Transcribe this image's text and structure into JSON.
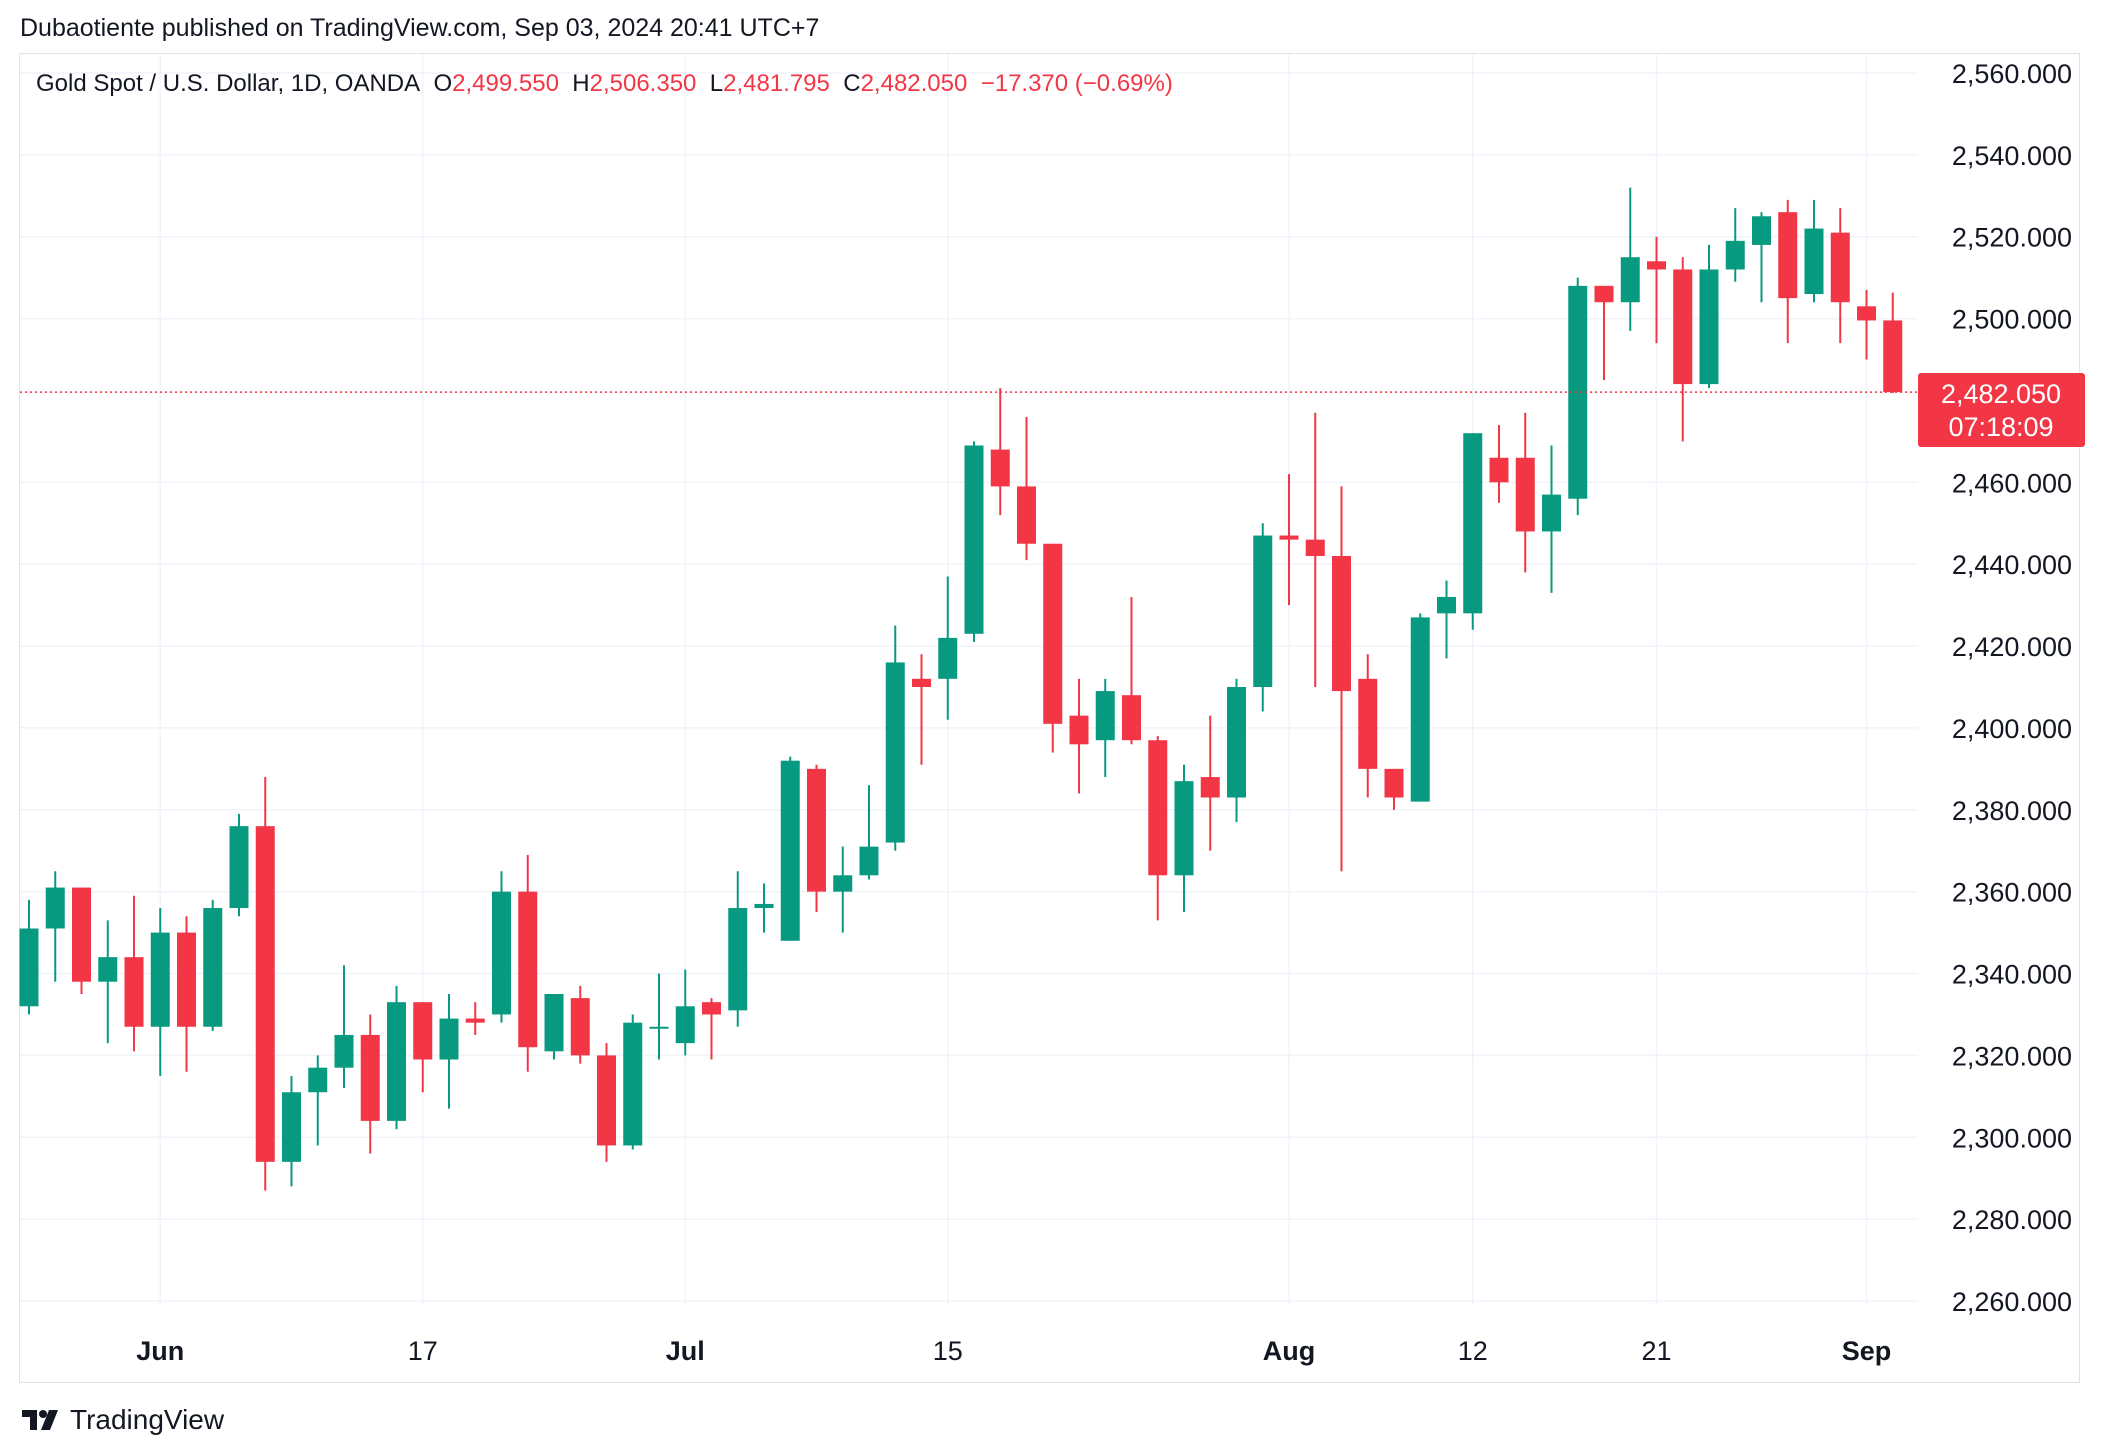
{
  "header": {
    "publish_line": "Dubaotiente published on TradingView.com, Sep 03, 2024 20:41 UTC+7"
  },
  "legend": {
    "symbol": "Gold Spot / U.S. Dollar, 1D, OANDA",
    "o_label": "O",
    "o_value": "2,499.550",
    "h_label": "H",
    "h_value": "2,506.350",
    "l_label": "L",
    "l_value": "2,481.795",
    "c_label": "C",
    "c_value": "2,482.050",
    "change": "−17.370 (−0.69%)"
  },
  "price_label": {
    "price": "2,482.050",
    "countdown": "07:18:09"
  },
  "footer": {
    "brand": "TradingView"
  },
  "colors": {
    "up": "#089981",
    "down": "#f23645",
    "grid": "#f0f3fa",
    "text": "#131722"
  },
  "chart_data": {
    "type": "candlestick",
    "y_ticks": [
      {
        "value": 2560,
        "label": "2,560.000"
      },
      {
        "value": 2540,
        "label": "2,540.000"
      },
      {
        "value": 2520,
        "label": "2,520.000"
      },
      {
        "value": 2500,
        "label": "2,500.000"
      },
      {
        "value": 2460,
        "label": "2,460.000"
      },
      {
        "value": 2440,
        "label": "2,440.000"
      },
      {
        "value": 2420,
        "label": "2,420.000"
      },
      {
        "value": 2400,
        "label": "2,400.000"
      },
      {
        "value": 2380,
        "label": "2,380.000"
      },
      {
        "value": 2360,
        "label": "2,360.000"
      },
      {
        "value": 2340,
        "label": "2,340.000"
      },
      {
        "value": 2320,
        "label": "2,320.000"
      },
      {
        "value": 2300,
        "label": "2,300.000"
      },
      {
        "value": 2280,
        "label": "2,280.000"
      },
      {
        "value": 2260,
        "label": "2,260.000"
      }
    ],
    "ylim": [
      2252,
      2570
    ],
    "x_ticks": [
      {
        "index": 5,
        "label": "Jun",
        "bold": true
      },
      {
        "index": 15,
        "label": "17",
        "bold": false
      },
      {
        "index": 25,
        "label": "Jul",
        "bold": true
      },
      {
        "index": 35,
        "label": "15",
        "bold": false
      },
      {
        "index": 48,
        "label": "Aug",
        "bold": true
      },
      {
        "index": 55,
        "label": "12",
        "bold": false
      },
      {
        "index": 62,
        "label": "21",
        "bold": false
      },
      {
        "index": 70,
        "label": "Sep",
        "bold": true
      }
    ],
    "last_price": 2482.05,
    "candles": [
      {
        "o": 2332,
        "h": 2358,
        "l": 2330,
        "c": 2351
      },
      {
        "o": 2351,
        "h": 2365,
        "l": 2338,
        "c": 2361
      },
      {
        "o": 2361,
        "h": 2361,
        "l": 2335,
        "c": 2338
      },
      {
        "o": 2338,
        "h": 2353,
        "l": 2323,
        "c": 2344
      },
      {
        "o": 2344,
        "h": 2359,
        "l": 2321,
        "c": 2327
      },
      {
        "o": 2327,
        "h": 2356,
        "l": 2315,
        "c": 2350
      },
      {
        "o": 2350,
        "h": 2354,
        "l": 2316,
        "c": 2327
      },
      {
        "o": 2327,
        "h": 2358,
        "l": 2326,
        "c": 2356
      },
      {
        "o": 2356,
        "h": 2379,
        "l": 2354,
        "c": 2376
      },
      {
        "o": 2376,
        "h": 2388,
        "l": 2287,
        "c": 2294
      },
      {
        "o": 2294,
        "h": 2315,
        "l": 2288,
        "c": 2311
      },
      {
        "o": 2311,
        "h": 2320,
        "l": 2298,
        "c": 2317
      },
      {
        "o": 2317,
        "h": 2342,
        "l": 2312,
        "c": 2325
      },
      {
        "o": 2325,
        "h": 2330,
        "l": 2296,
        "c": 2304
      },
      {
        "o": 2304,
        "h": 2337,
        "l": 2302,
        "c": 2333
      },
      {
        "o": 2333,
        "h": 2333,
        "l": 2311,
        "c": 2319
      },
      {
        "o": 2319,
        "h": 2335,
        "l": 2307,
        "c": 2329
      },
      {
        "o": 2329,
        "h": 2333,
        "l": 2325,
        "c": 2328
      },
      {
        "o": 2330,
        "h": 2365,
        "l": 2328,
        "c": 2360
      },
      {
        "o": 2360,
        "h": 2369,
        "l": 2316,
        "c": 2322
      },
      {
        "o": 2321,
        "h": 2335,
        "l": 2319,
        "c": 2335
      },
      {
        "o": 2334,
        "h": 2337,
        "l": 2318,
        "c": 2320
      },
      {
        "o": 2320,
        "h": 2323,
        "l": 2294,
        "c": 2298
      },
      {
        "o": 2298,
        "h": 2330,
        "l": 2297,
        "c": 2328
      },
      {
        "o": 2327,
        "h": 2340,
        "l": 2319,
        "c": 2327
      },
      {
        "o": 2323,
        "h": 2341,
        "l": 2320,
        "c": 2332
      },
      {
        "o": 2333,
        "h": 2334,
        "l": 2319,
        "c": 2330
      },
      {
        "o": 2331,
        "h": 2365,
        "l": 2327,
        "c": 2356
      },
      {
        "o": 2356,
        "h": 2362,
        "l": 2350,
        "c": 2357
      },
      {
        "o": 2348,
        "h": 2393,
        "l": 2349,
        "c": 2392
      },
      {
        "o": 2390,
        "h": 2391,
        "l": 2355,
        "c": 2360
      },
      {
        "o": 2360,
        "h": 2371,
        "l": 2350,
        "c": 2364
      },
      {
        "o": 2364,
        "h": 2386,
        "l": 2363,
        "c": 2371
      },
      {
        "o": 2372,
        "h": 2425,
        "l": 2370,
        "c": 2416
      },
      {
        "o": 2412,
        "h": 2418,
        "l": 2391,
        "c": 2410
      },
      {
        "o": 2412,
        "h": 2437,
        "l": 2402,
        "c": 2422
      },
      {
        "o": 2423,
        "h": 2470,
        "l": 2421,
        "c": 2469
      },
      {
        "o": 2468,
        "h": 2483,
        "l": 2452,
        "c": 2459
      },
      {
        "o": 2459,
        "h": 2476,
        "l": 2441,
        "c": 2445
      },
      {
        "o": 2445,
        "h": 2445,
        "l": 2394,
        "c": 2401
      },
      {
        "o": 2403,
        "h": 2412,
        "l": 2384,
        "c": 2396
      },
      {
        "o": 2397,
        "h": 2412,
        "l": 2388,
        "c": 2409
      },
      {
        "o": 2408,
        "h": 2432,
        "l": 2396,
        "c": 2397
      },
      {
        "o": 2397,
        "h": 2398,
        "l": 2353,
        "c": 2364
      },
      {
        "o": 2364,
        "h": 2391,
        "l": 2355,
        "c": 2387
      },
      {
        "o": 2388,
        "h": 2403,
        "l": 2370,
        "c": 2383
      },
      {
        "o": 2383,
        "h": 2412,
        "l": 2377,
        "c": 2410
      },
      {
        "o": 2410,
        "h": 2450,
        "l": 2404,
        "c": 2447
      },
      {
        "o": 2447,
        "h": 2462,
        "l": 2430,
        "c": 2446
      },
      {
        "o": 2446,
        "h": 2477,
        "l": 2410,
        "c": 2442
      },
      {
        "o": 2442,
        "h": 2459,
        "l": 2365,
        "c": 2409
      },
      {
        "o": 2412,
        "h": 2418,
        "l": 2383,
        "c": 2390
      },
      {
        "o": 2390,
        "h": 2390,
        "l": 2380,
        "c": 2383
      },
      {
        "o": 2382,
        "h": 2428,
        "l": 2382,
        "c": 2427
      },
      {
        "o": 2428,
        "h": 2436,
        "l": 2417,
        "c": 2432
      },
      {
        "o": 2428,
        "h": 2472,
        "l": 2424,
        "c": 2472
      },
      {
        "o": 2466,
        "h": 2474,
        "l": 2455,
        "c": 2460
      },
      {
        "o": 2466,
        "h": 2477,
        "l": 2438,
        "c": 2448
      },
      {
        "o": 2448,
        "h": 2469,
        "l": 2433,
        "c": 2457
      },
      {
        "o": 2456,
        "h": 2510,
        "l": 2452,
        "c": 2508
      },
      {
        "o": 2508,
        "h": 2508,
        "l": 2485,
        "c": 2504
      },
      {
        "o": 2504,
        "h": 2532,
        "l": 2497,
        "c": 2515
      },
      {
        "o": 2514,
        "h": 2520,
        "l": 2494,
        "c": 2512
      },
      {
        "o": 2512,
        "h": 2515,
        "l": 2470,
        "c": 2484
      },
      {
        "o": 2484,
        "h": 2518,
        "l": 2483,
        "c": 2512
      },
      {
        "o": 2512,
        "h": 2527,
        "l": 2509,
        "c": 2519
      },
      {
        "o": 2518,
        "h": 2526,
        "l": 2504,
        "c": 2525
      },
      {
        "o": 2526,
        "h": 2529,
        "l": 2494,
        "c": 2505
      },
      {
        "o": 2506,
        "h": 2529,
        "l": 2504,
        "c": 2522
      },
      {
        "o": 2521,
        "h": 2527,
        "l": 2494,
        "c": 2504
      },
      {
        "o": 2503,
        "h": 2507,
        "l": 2490,
        "c": 2499.55
      },
      {
        "o": 2499.55,
        "h": 2506.35,
        "l": 2481.795,
        "c": 2482.05
      }
    ]
  }
}
